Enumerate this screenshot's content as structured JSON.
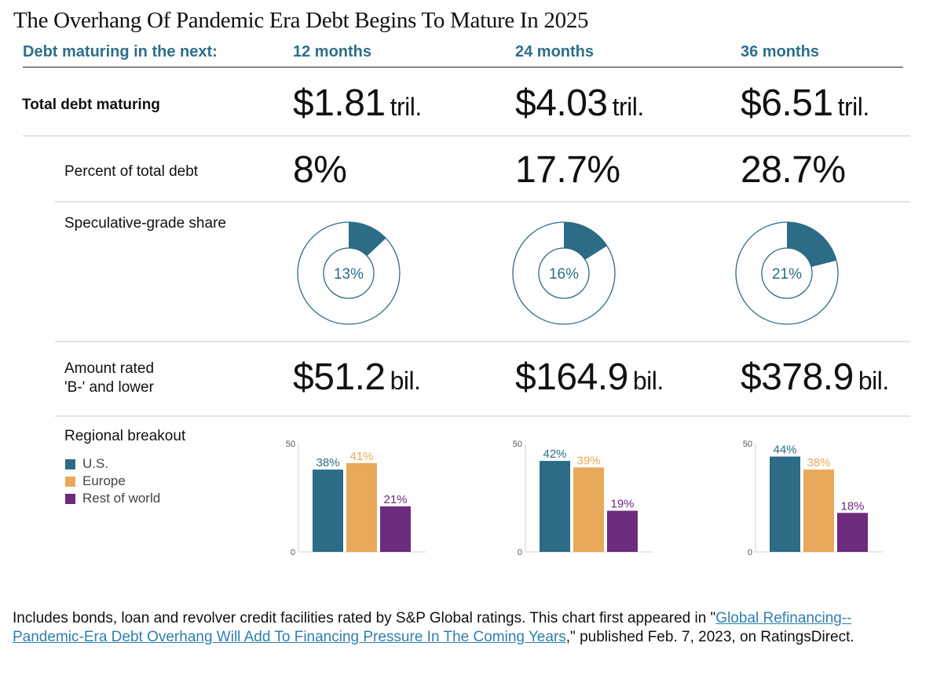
{
  "title": "The Overhang Of Pandemic Era Debt Begins To Mature In 2025",
  "header": {
    "label": "Debt maturing in the next:",
    "columns": [
      "12 months",
      "24 months",
      "36 months"
    ]
  },
  "rows": {
    "total_debt": {
      "label": "Total debt maturing",
      "values": [
        {
          "amount": "$1.81",
          "unit": "tril."
        },
        {
          "amount": "$4.03",
          "unit": "tril."
        },
        {
          "amount": "$6.51",
          "unit": "tril."
        }
      ]
    },
    "percent_total": {
      "label": "Percent of total debt",
      "values": [
        "8%",
        "17.7%",
        "28.7%"
      ]
    },
    "spec_grade": {
      "label": "Speculative-grade share"
    },
    "rated_b_minus": {
      "label_line1": "Amount rated",
      "label_line2": "'B-' and lower",
      "values": [
        {
          "amount": "$51.2",
          "unit": "bil."
        },
        {
          "amount": "$164.9",
          "unit": "bil."
        },
        {
          "amount": "$378.9",
          "unit": "bil."
        }
      ]
    },
    "regional": {
      "label": "Regional breakout"
    }
  },
  "colors": {
    "us": "#2c6c87",
    "europe": "#e8a95a",
    "rest_of_world": "#6c2b7c",
    "header": "#2e6e8a",
    "link": "#2f7fb0"
  },
  "chart_data": [
    {
      "type": "pie",
      "title": "Speculative-grade share",
      "categories": [
        "12 months",
        "24 months",
        "36 months"
      ],
      "values": [
        13,
        16,
        21
      ],
      "labels": [
        "13%",
        "16%",
        "21%"
      ],
      "unit": "%"
    },
    {
      "type": "bar",
      "title": "Regional breakout",
      "categories": [
        "12 months",
        "24 months",
        "36 months"
      ],
      "legend": [
        "U.S.",
        "Europe",
        "Rest of world"
      ],
      "legend_position": "left",
      "series": [
        {
          "name": "U.S.",
          "values": [
            38,
            42,
            44
          ],
          "labels": [
            "38%",
            "42%",
            "44%"
          ]
        },
        {
          "name": "Europe",
          "values": [
            41,
            39,
            38
          ],
          "labels": [
            "41%",
            "39%",
            "38%"
          ]
        },
        {
          "name": "Rest of world",
          "values": [
            21,
            19,
            18
          ],
          "labels": [
            "21%",
            "19%",
            "18%"
          ]
        }
      ],
      "yticks": [
        "0",
        "50"
      ],
      "ylim": [
        0,
        50
      ]
    }
  ],
  "footnote": {
    "text_before": "Includes bonds, loan and revolver credit facilities rated by S&P Global ratings. This chart first appeared in \"",
    "link_text": "Global Refinancing--Pandemic-Era Debt Overhang Will Add To Financing Pressure In The Coming Years",
    "text_after": ",\" published Feb. 7, 2023, on RatingsDirect."
  }
}
